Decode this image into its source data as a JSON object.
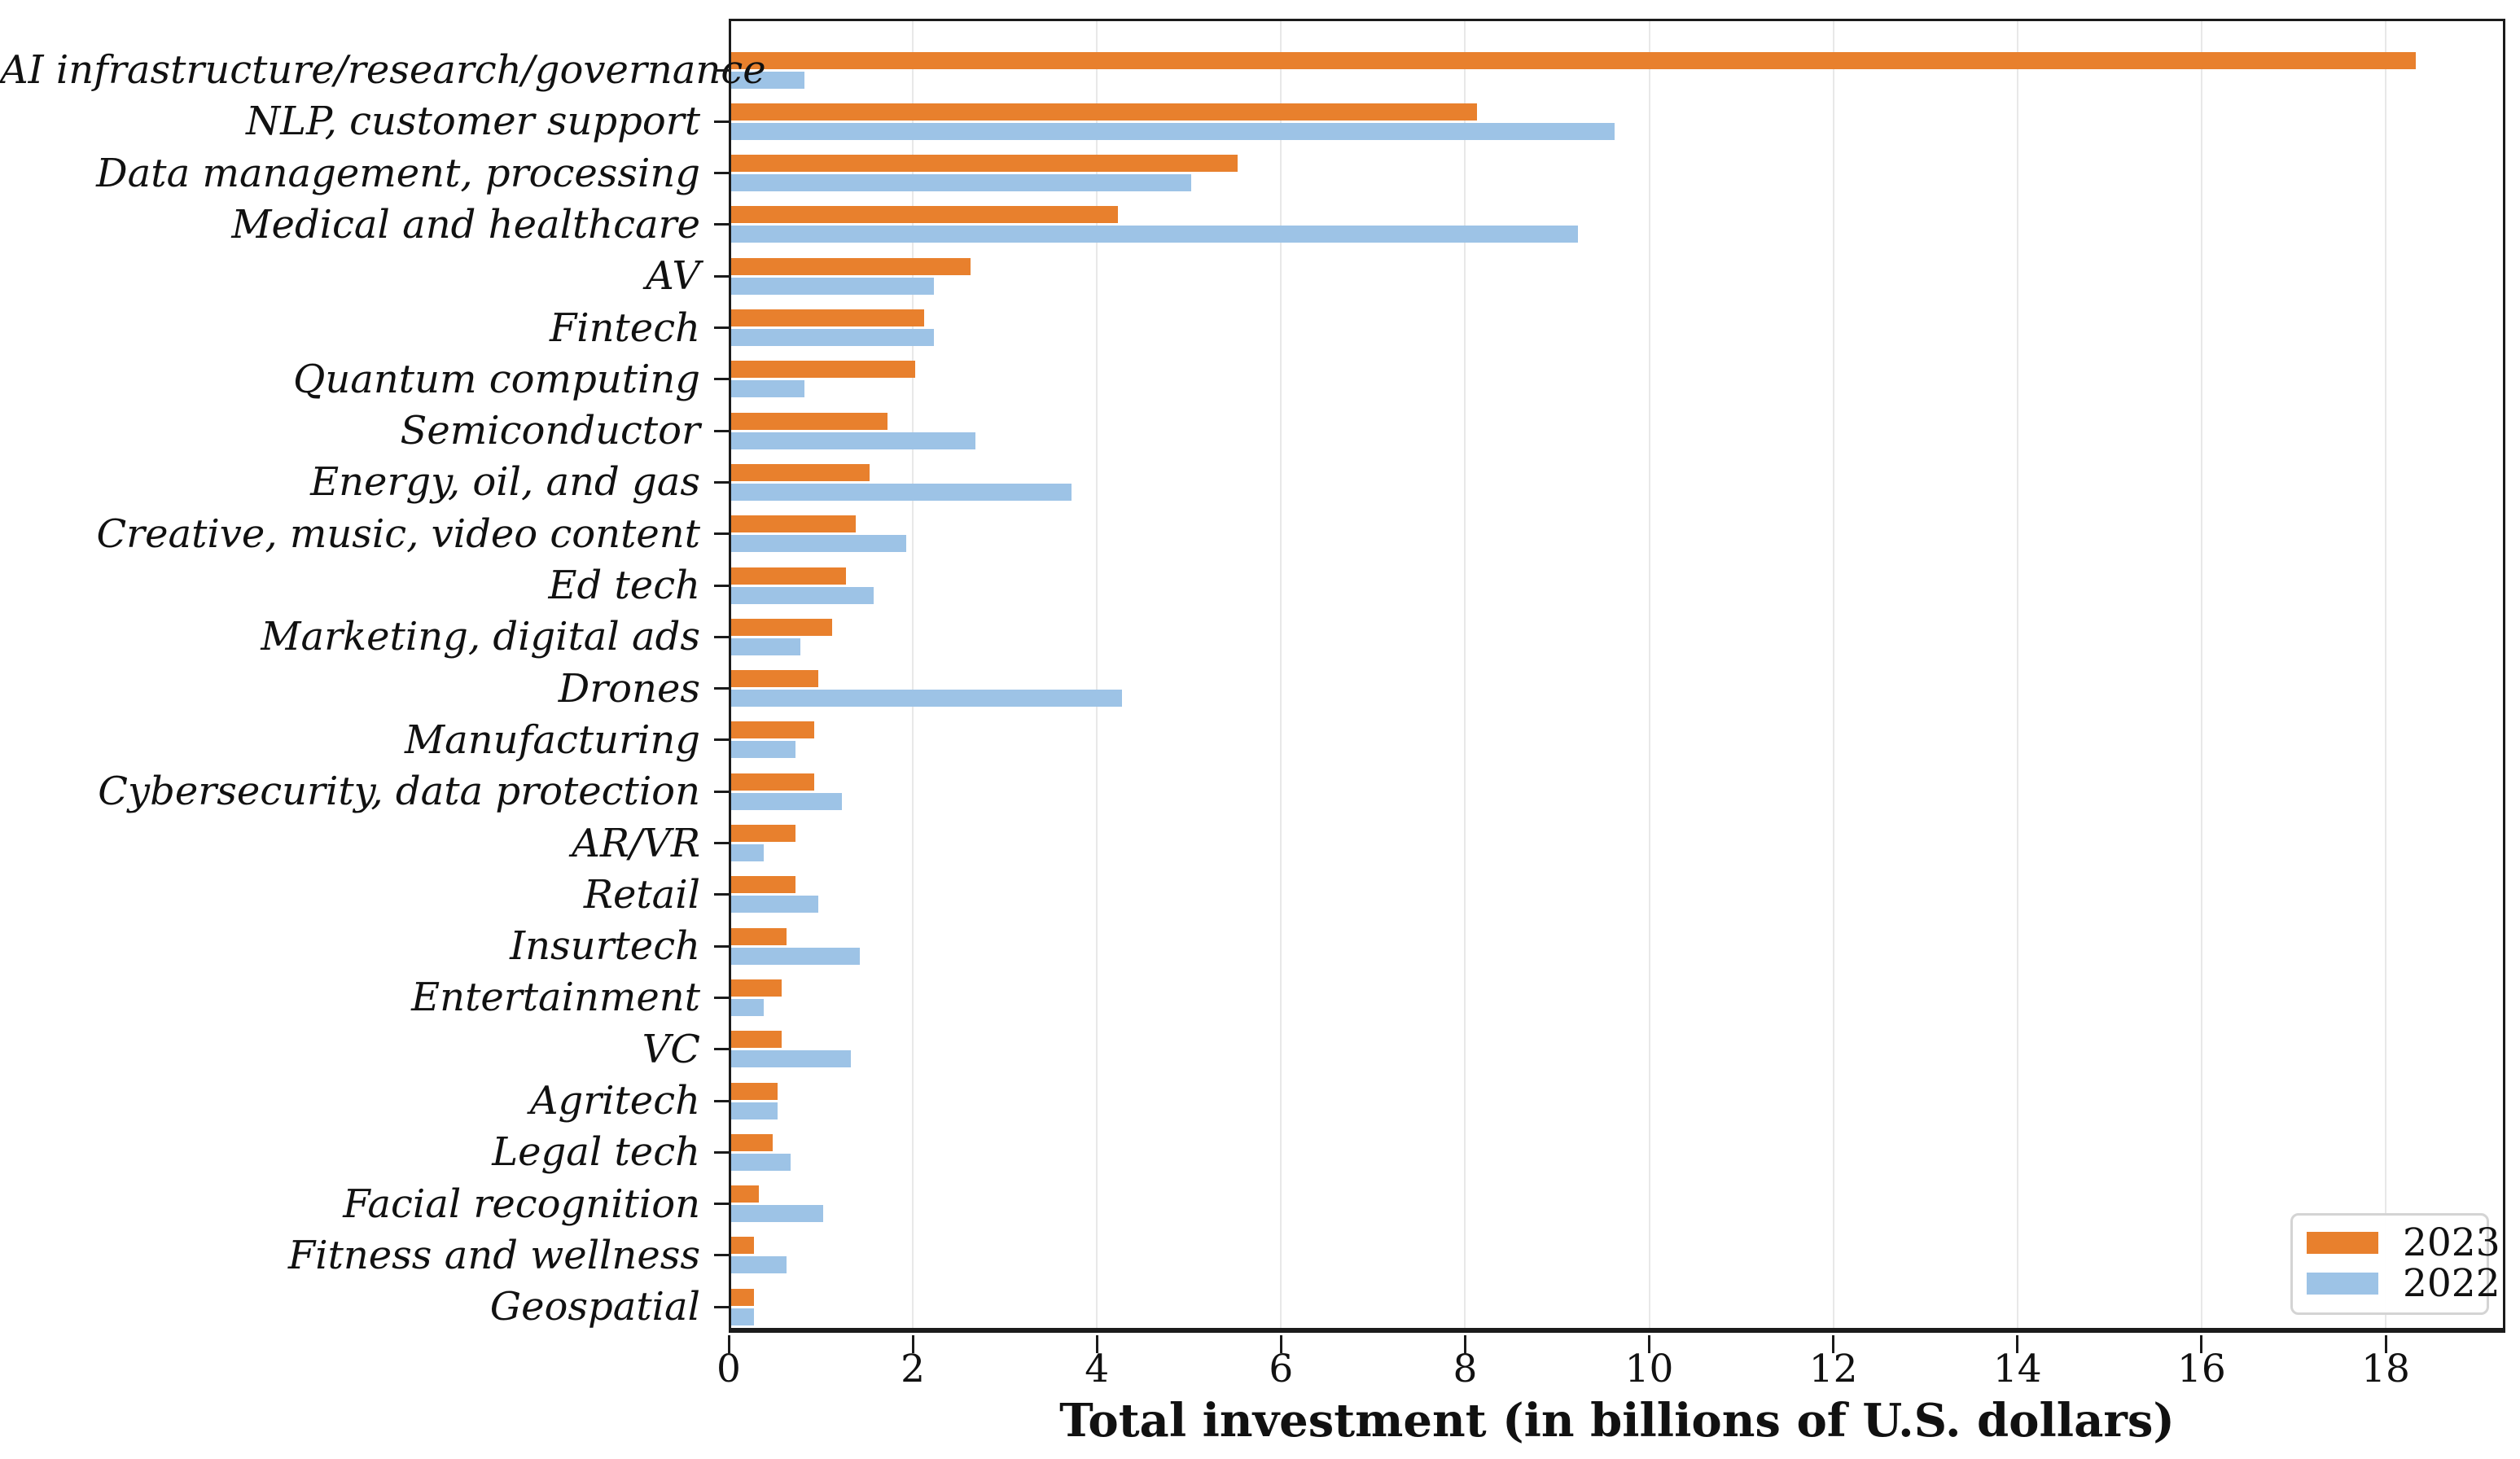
{
  "figure": {
    "background": "#ffffff"
  },
  "axis": {
    "spine_color": "#1b1b1b",
    "grid_color": "#e8e8e8",
    "tick_color": "#1b1b1b",
    "text_color": "#111111"
  },
  "chart_data": {
    "type": "bar",
    "orientation": "horizontal",
    "title": "",
    "xlabel": "Total investment (in billions of U.S. dollars)",
    "ylabel": "",
    "xlim": [
      0,
      19.3
    ],
    "xticks": [
      0,
      2,
      4,
      6,
      8,
      10,
      12,
      14,
      16,
      18
    ],
    "grid": "vertical",
    "legend_position": "lower right",
    "categories": [
      "AI infrastructure/research/governance",
      "NLP, customer support",
      "Data management, processing",
      "Medical and healthcare",
      "AV",
      "Fintech",
      "Quantum computing",
      "Semiconductor",
      "Energy, oil, and gas",
      "Creative, music, video content",
      "Ed tech",
      "Marketing, digital ads",
      "Drones",
      "Manufacturing",
      "Cybersecurity, data protection",
      "AR/VR",
      "Retail",
      "Insurtech",
      "Entertainment",
      "VC",
      "Agritech",
      "Legal tech",
      "Facial recognition",
      "Fitness and wellness",
      "Geospatial"
    ],
    "series": [
      {
        "name": "2023",
        "color": "#E8802D",
        "values": [
          18.3,
          8.1,
          5.5,
          4.2,
          2.6,
          2.1,
          2.0,
          1.7,
          1.5,
          1.35,
          1.25,
          1.1,
          0.95,
          0.9,
          0.9,
          0.7,
          0.7,
          0.6,
          0.55,
          0.55,
          0.5,
          0.45,
          0.3,
          0.25,
          0.25
        ]
      },
      {
        "name": "2022",
        "color": "#9DC3E6",
        "values": [
          0.8,
          9.6,
          5.0,
          9.2,
          2.2,
          2.2,
          0.8,
          2.65,
          3.7,
          1.9,
          1.55,
          0.75,
          4.25,
          0.7,
          1.2,
          0.35,
          0.95,
          1.4,
          0.35,
          1.3,
          0.5,
          0.65,
          1.0,
          0.6,
          0.25
        ]
      }
    ]
  }
}
